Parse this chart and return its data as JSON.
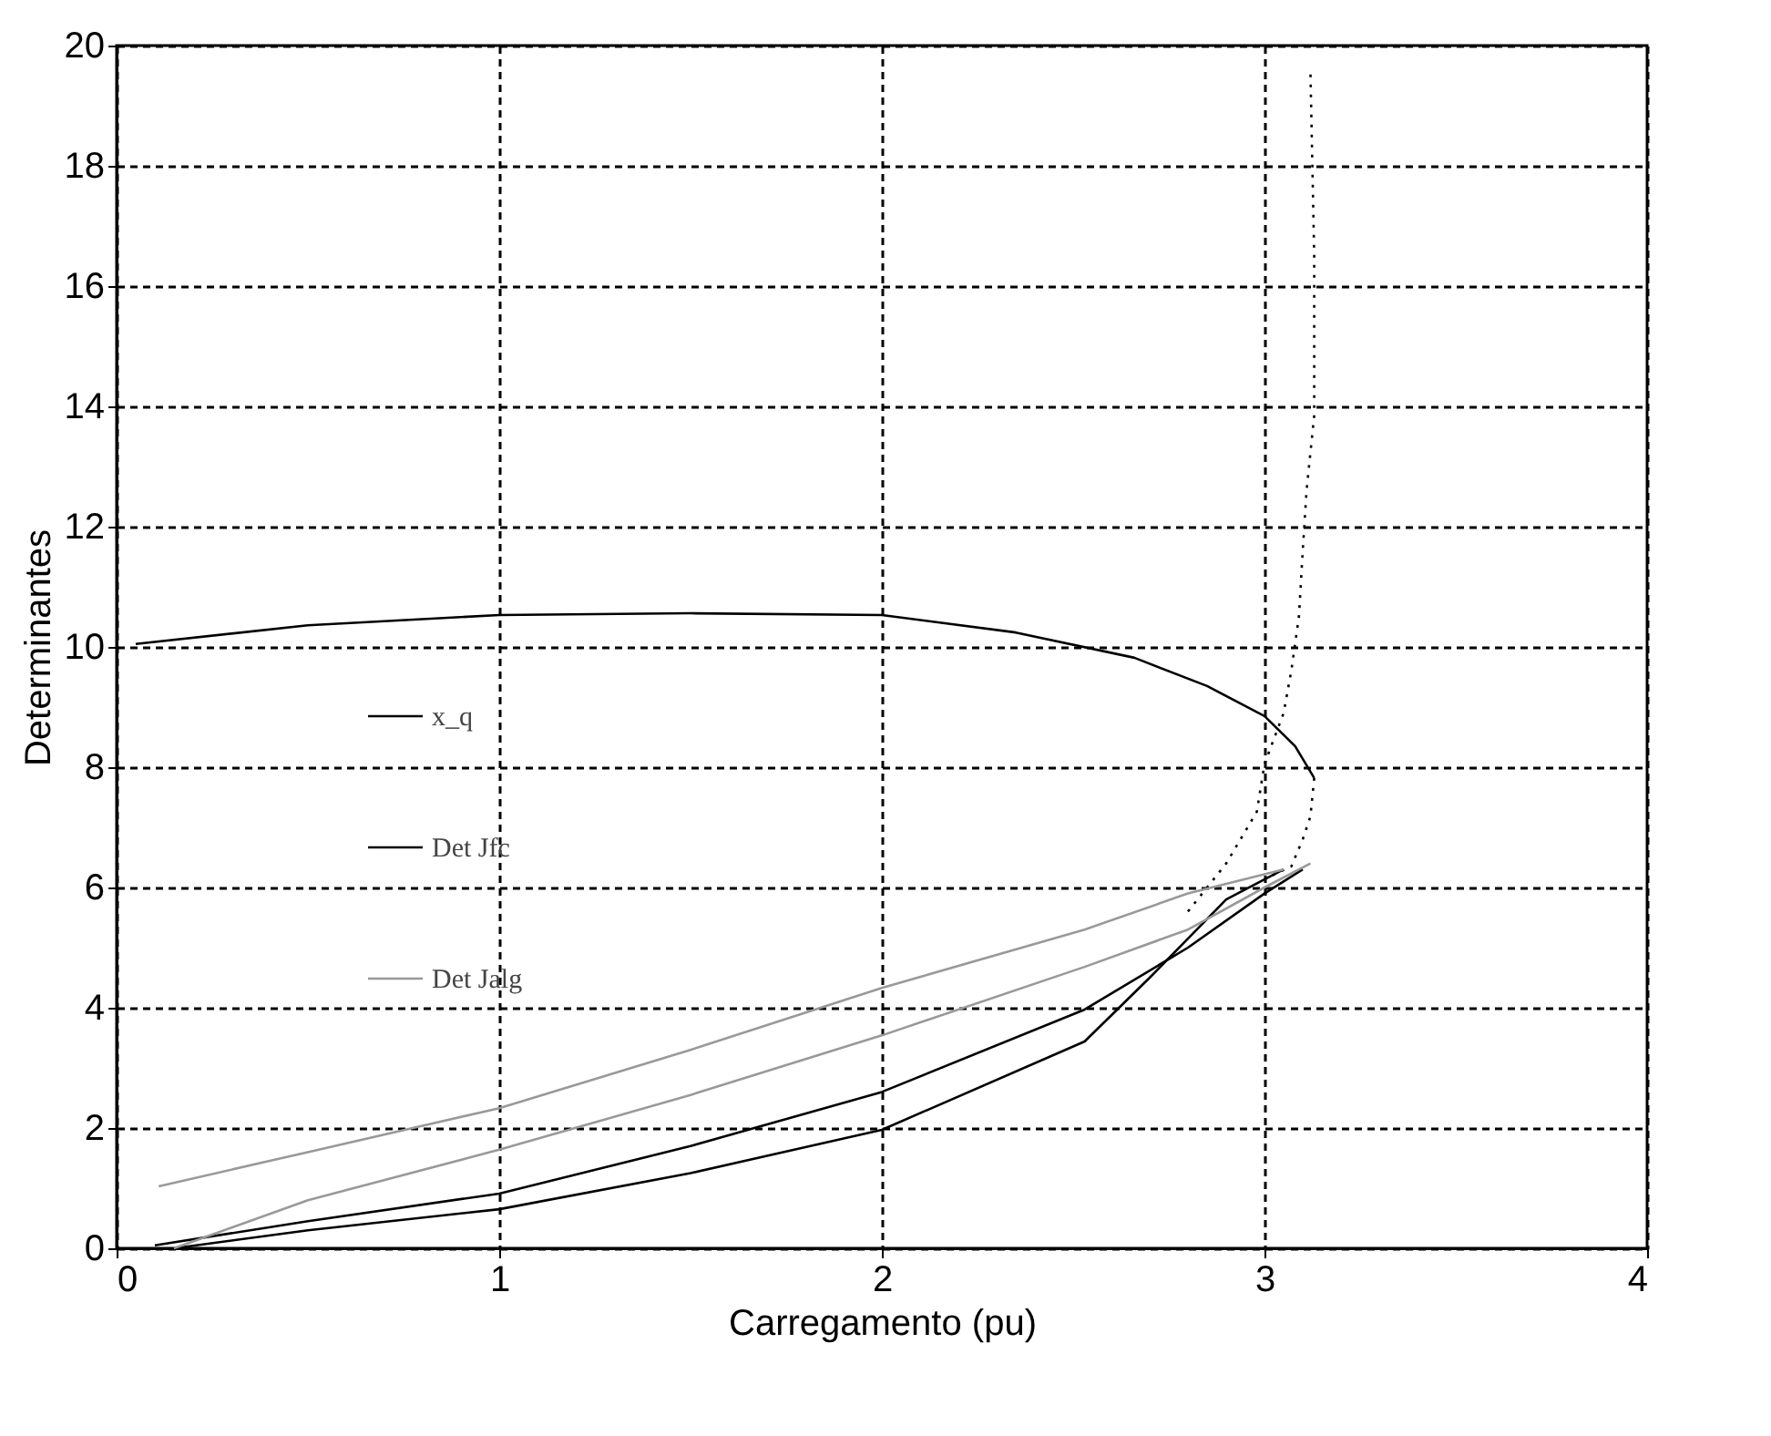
{
  "chart_data": {
    "type": "line",
    "xlabel": "Carregamento (pu)",
    "ylabel": "Determinantes",
    "xlim": [
      0,
      4
    ],
    "ylim": [
      0,
      20
    ],
    "xticks": [
      0,
      1,
      2,
      3,
      4
    ],
    "yticks": [
      0,
      2,
      4,
      6,
      8,
      10,
      12,
      14,
      16,
      18,
      20
    ],
    "grid": true,
    "legend": "left",
    "series": [
      {
        "name": "x_q",
        "color": "#000000",
        "line_style": "solid",
        "x": [
          0.05,
          0.5,
          1,
          1.5,
          2,
          2.35,
          2.66,
          2.85,
          3.0,
          3.08,
          3.13
        ],
        "values": [
          10.05,
          10.36,
          10.53,
          10.56,
          10.53,
          10.24,
          9.82,
          9.35,
          8.85,
          8.35,
          7.82
        ]
      },
      {
        "color": "#000000",
        "line_style": "dotted",
        "x": [
          3.13,
          3.12,
          3.1,
          3.07,
          3.02
        ],
        "values": [
          7.82,
          7.18,
          6.8,
          6.35,
          6.2
        ]
      },
      {
        "color": "#000000",
        "line_style": "dotted",
        "x": [
          2.8,
          2.9,
          2.98,
          3.0,
          3.05,
          3.07,
          3.09,
          3.1,
          3.11,
          3.13,
          3.13,
          3.12
        ],
        "values": [
          5.6,
          6.4,
          7.26,
          8.05,
          8.9,
          9.6,
          10.5,
          11.6,
          12.6,
          13.85,
          16.5,
          19.6
        ]
      },
      {
        "name": "Det Jfc",
        "color": "#000000",
        "line_style": "solid",
        "x": [
          0.1,
          0.5,
          1,
          1.5,
          2,
          2.53,
          2.8,
          3.0,
          3.1
        ],
        "values": [
          0.05,
          0.45,
          0.91,
          1.7,
          2.6,
          3.97,
          5.0,
          5.9,
          6.3
        ]
      },
      {
        "color": "#000000",
        "line_style": "solid",
        "x": [
          0.15,
          0.5,
          1,
          1.5,
          2,
          2.53,
          2.7,
          2.9,
          3.05
        ],
        "values": [
          0.0,
          0.3,
          0.65,
          1.25,
          1.97,
          3.44,
          4.5,
          5.8,
          6.3
        ]
      },
      {
        "name": "Det Jalg",
        "color": "#999999",
        "line_style": "solid",
        "x": [
          0.11,
          0.5,
          1,
          1.5,
          2,
          2.53,
          2.8,
          3.05
        ],
        "values": [
          1.03,
          1.6,
          2.33,
          3.3,
          4.33,
          5.3,
          5.9,
          6.3
        ]
      },
      {
        "color": "#999999",
        "line_style": "solid",
        "x": [
          0.15,
          0.5,
          1,
          1.5,
          2,
          2.53,
          2.8,
          3.0,
          3.12
        ],
        "values": [
          0.0,
          0.8,
          1.64,
          2.55,
          3.54,
          4.68,
          5.3,
          6.0,
          6.4
        ]
      }
    ]
  }
}
